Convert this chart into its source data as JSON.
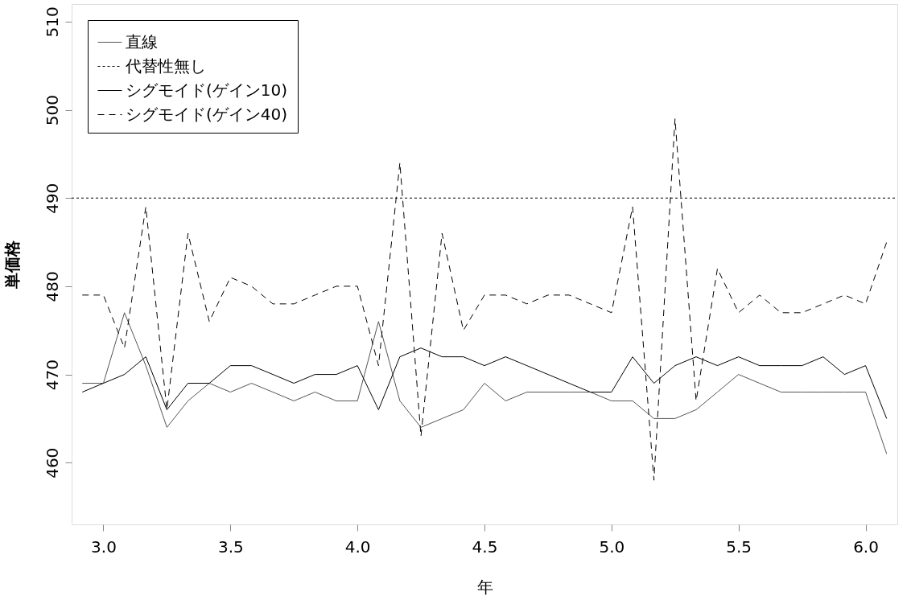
{
  "chart_data": {
    "type": "line",
    "xlabel": "年",
    "ylabel": "単価格",
    "x": [
      2.917,
      3.0,
      3.083,
      3.167,
      3.25,
      3.333,
      3.417,
      3.5,
      3.583,
      3.667,
      3.75,
      3.833,
      3.917,
      4.0,
      4.083,
      4.167,
      4.25,
      4.333,
      4.417,
      4.5,
      4.583,
      4.667,
      4.75,
      4.833,
      4.917,
      5.0,
      5.083,
      5.167,
      5.25,
      5.333,
      5.417,
      5.5,
      5.583,
      5.667,
      5.75,
      5.833,
      5.917,
      6.0,
      6.083
    ],
    "series": [
      {
        "name": "直線",
        "color": "#555555",
        "line_style": "solid",
        "values": [
          469,
          469,
          477,
          471,
          464,
          467,
          469,
          468,
          469,
          468,
          467,
          468,
          467,
          467,
          476,
          467,
          464,
          465,
          466,
          469,
          467,
          468,
          468,
          468,
          468,
          467,
          467,
          465,
          465,
          466,
          468,
          470,
          469,
          468,
          468,
          468,
          468,
          468,
          461
        ]
      },
      {
        "name": "代替性無し",
        "color": "#000000",
        "line_style": "dotted",
        "x": [
          2.875,
          6.125
        ],
        "values": [
          490,
          490
        ]
      },
      {
        "name": "シグモイド(ゲイン10)",
        "color": "#000000",
        "line_style": "solid",
        "values": [
          468,
          469,
          470,
          472,
          466,
          469,
          469,
          471,
          471,
          470,
          469,
          470,
          470,
          471,
          466,
          472,
          473,
          472,
          472,
          471,
          472,
          471,
          470,
          469,
          468,
          468,
          472,
          469,
          471,
          472,
          471,
          472,
          471,
          471,
          471,
          472,
          470,
          471,
          465
        ]
      },
      {
        "name": "シグモイド(ゲイン40)",
        "color": "#000000",
        "line_style": "dashed",
        "values": [
          479,
          479,
          473,
          489,
          466,
          486,
          476,
          481,
          480,
          478,
          478,
          479,
          480,
          480,
          471,
          494,
          463,
          486,
          475,
          479,
          479,
          478,
          479,
          479,
          478,
          477,
          489,
          458,
          499,
          467,
          482,
          477,
          479,
          477,
          477,
          478,
          479,
          478,
          485
        ]
      }
    ],
    "xlim": [
      2.875,
      6.125
    ],
    "xticks": [
      {
        "value": 3,
        "label": "3.0"
      },
      {
        "value": 3.5,
        "label": "3.5"
      },
      {
        "value": 4,
        "label": "4.0"
      },
      {
        "value": 4.5,
        "label": "4.5"
      },
      {
        "value": 5,
        "label": "5.0"
      },
      {
        "value": 5.5,
        "label": "5.5"
      },
      {
        "value": 6,
        "label": "6.0"
      }
    ],
    "ylim": [
      453,
      512
    ],
    "yticks": [
      460,
      470,
      480,
      490,
      500,
      510
    ],
    "grid": false,
    "legend": "top left"
  }
}
